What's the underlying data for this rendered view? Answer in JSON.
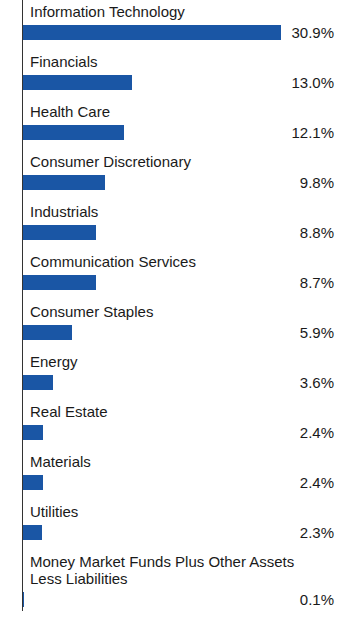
{
  "chart_data": {
    "type": "bar",
    "orientation": "horizontal",
    "categories": [
      "Information Technology",
      "Financials",
      "Health Care",
      "Consumer Discretionary",
      "Industrials",
      "Communication Services",
      "Consumer Staples",
      "Energy",
      "Real Estate",
      "Materials",
      "Utilities",
      "Money Market Funds Plus Other Assets Less Liabilities"
    ],
    "values": [
      30.9,
      13.0,
      12.1,
      9.8,
      8.8,
      8.7,
      5.9,
      3.6,
      2.4,
      2.4,
      2.3,
      0.1
    ],
    "value_labels": [
      "30.9%",
      "13.0%",
      "12.1%",
      "9.8%",
      "8.8%",
      "8.7%",
      "5.9%",
      "3.6%",
      "2.4%",
      "2.4%",
      "2.3%",
      "0.1%"
    ],
    "color": "#1a56a5",
    "data_labels": true,
    "tick_labels": false
  }
}
